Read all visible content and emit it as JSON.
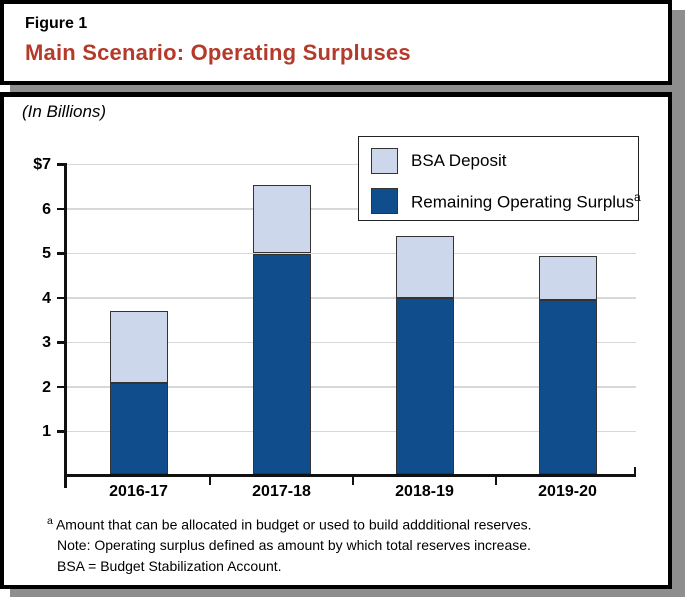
{
  "header": {
    "figure_label": "Figure 1",
    "title": "Main Scenario: Operating Surpluses",
    "title_color": "#b43a2b"
  },
  "subtitle": "(In Billions)",
  "legend": {
    "items": [
      {
        "label": "BSA Deposit",
        "superscript": "",
        "color": "#cdd7ec"
      },
      {
        "label": "Remaining Operating Surplus",
        "superscript": "a",
        "color": "#0f4d8c"
      }
    ]
  },
  "chart_data": {
    "type": "bar",
    "stacked": true,
    "title": "Main Scenario: Operating Surpluses",
    "subtitle": "(In Billions)",
    "categories": [
      "2016-17",
      "2017-18",
      "2018-19",
      "2019-20"
    ],
    "series": [
      {
        "name": "Remaining Operating Surplus",
        "color": "#0f4d8c",
        "values": [
          2.1,
          5.0,
          4.0,
          3.95
        ]
      },
      {
        "name": "BSA Deposit",
        "color": "#cdd7ec",
        "values": [
          1.6,
          1.55,
          1.4,
          1.0
        ]
      }
    ],
    "stack_totals": [
      3.7,
      6.55,
      5.4,
      4.95
    ],
    "ylim": [
      0,
      7
    ],
    "y_ticks": [
      1,
      2,
      3,
      4,
      5,
      6,
      7
    ],
    "ylabel_prefix": "$",
    "grid": true,
    "grid_color": "#d8d8d8",
    "axis_color": "#111111",
    "bar_border_color": "#333333",
    "legend_position": "top-right"
  },
  "footnotes": {
    "superscript": "a",
    "line1": "Amount that can be allocated in budget or used to build addditional reserves.",
    "line2": "Note: Operating surplus defined as amount by which total reserves increase.",
    "line3": "BSA = Budget Stabilization Account."
  }
}
